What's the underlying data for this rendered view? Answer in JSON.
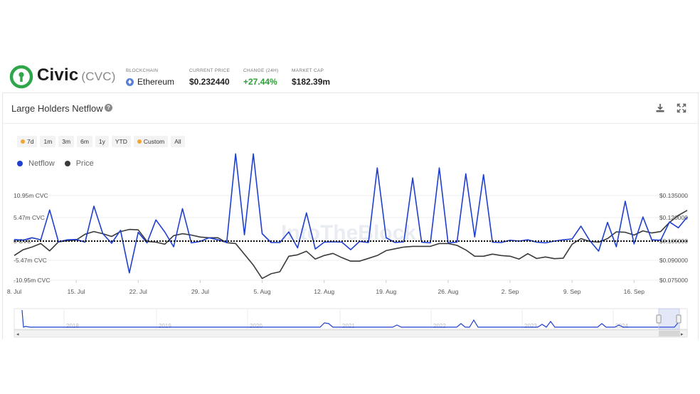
{
  "header": {
    "name": "Civic",
    "ticker": "(CVC)",
    "stats": [
      {
        "label": "BLOCKCHAIN",
        "value": "Ethereum"
      },
      {
        "label": "CURRENT PRICE",
        "value": "$0.232440"
      },
      {
        "label": "CHANGE (24H)",
        "value": "+27.44%"
      },
      {
        "label": "MARKET CAP",
        "value": "$182.39m"
      }
    ]
  },
  "card": {
    "title": "Large Holders Netflow",
    "help_icon": "?",
    "download_icon": "download-icon",
    "fullscreen_icon": "fullscreen-icon"
  },
  "ranges": [
    "7d",
    "1m",
    "3m",
    "6m",
    "1y",
    "YTD",
    "Custom",
    "All"
  ],
  "colors": {
    "netflow": "#1f3fcf",
    "price": "#3a3a3a",
    "positive": "#2f9e3a",
    "brand": "#2fa64a"
  },
  "chart_data": {
    "type": "line",
    "x_ticks": [
      "8. Jul",
      "15. Jul",
      "22. Jul",
      "29. Jul",
      "5. Aug",
      "12. Aug",
      "19. Aug",
      "26. Aug",
      "2. Sep",
      "9. Sep",
      "16. Sep"
    ],
    "left_axis": {
      "ticks": [
        "10.95m CVC",
        "5.47m CVC",
        "0 CVC",
        "-5.47m CVC",
        "-10.95m CVC"
      ],
      "range": [
        -10.95,
        10.95
      ],
      "unit": "m CVC"
    },
    "right_axis": {
      "ticks": [
        "$0.135000",
        "$0.120000",
        "$0.105000",
        "$0.090000",
        "$0.075000"
      ],
      "range": [
        0.075,
        0.135
      ]
    },
    "x_range": [
      0,
      76
    ],
    "series": [
      {
        "name": "Netflow",
        "axis": "left",
        "x": [
          0,
          1,
          2,
          3,
          4,
          5,
          6,
          7,
          8,
          9,
          10,
          11,
          12,
          13,
          14,
          15,
          16,
          17,
          18,
          19,
          20,
          21,
          22,
          23,
          24,
          25,
          26,
          27,
          28,
          29,
          30,
          31,
          32,
          33,
          34,
          35,
          36,
          37,
          38,
          39,
          40,
          41,
          42,
          43,
          44,
          45,
          46,
          47,
          48,
          49,
          50,
          51,
          52,
          53,
          54,
          55,
          56,
          57,
          58,
          59,
          60,
          61,
          62,
          63,
          64,
          65,
          66,
          67,
          68,
          69,
          70,
          71,
          72,
          73,
          74,
          75,
          76
        ],
        "values": [
          0.4,
          0.2,
          0.8,
          0.3,
          7.5,
          -0.2,
          0.3,
          0.4,
          -0.3,
          8.4,
          1.8,
          -0.6,
          2.6,
          -8.9,
          2.1,
          -0.5,
          5.1,
          2.2,
          -1.6,
          7.8,
          -0.5,
          -0.1,
          0.8,
          0.3,
          -0.4,
          21.0,
          1.5,
          21.0,
          1.8,
          -0.4,
          -0.4,
          2.2,
          -1.9,
          6.8,
          -2.2,
          -0.3,
          -0.2,
          -0.3,
          -2.4,
          -0.1,
          -0.4,
          17.6,
          0.8,
          -0.4,
          -0.2,
          15.2,
          -0.3,
          -0.5,
          17.6,
          -0.5,
          -0.3,
          16.2,
          1.0,
          16.0,
          -0.3,
          -0.4,
          0.2,
          0.0,
          0.3,
          -0.3,
          -0.5,
          0.0,
          0.3,
          0.5,
          3.6,
          0.1,
          -2.8,
          4.5,
          -1.6,
          9.6,
          -0.8,
          5.8,
          0.3,
          0.2,
          4.6,
          3.2,
          5.8
        ]
      },
      {
        "name": "Price",
        "axis": "right",
        "x": [
          0,
          1,
          2,
          3,
          4,
          5,
          6,
          7,
          8,
          9,
          10,
          11,
          12,
          13,
          14,
          15,
          16,
          17,
          18,
          19,
          20,
          21,
          22,
          23,
          24,
          25,
          26,
          27,
          28,
          29,
          30,
          31,
          32,
          33,
          34,
          35,
          36,
          37,
          38,
          39,
          40,
          41,
          42,
          43,
          44,
          45,
          46,
          47,
          48,
          49,
          50,
          51,
          52,
          53,
          54,
          55,
          56,
          57,
          58,
          59,
          60,
          61,
          62,
          63,
          64,
          65,
          66,
          67,
          68,
          69,
          70,
          71,
          72,
          73,
          74,
          75,
          76
        ],
        "values": [
          0.0925,
          0.0966,
          0.0985,
          0.101,
          0.0958,
          0.1022,
          0.103,
          0.1035,
          0.1076,
          0.1095,
          0.108,
          0.106,
          0.1095,
          0.111,
          0.1107,
          0.1025,
          0.102,
          0.1005,
          0.1066,
          0.108,
          0.107,
          0.1056,
          0.1051,
          0.1051,
          0.1016,
          0.101,
          0.0934,
          0.0857,
          0.0762,
          0.0796,
          0.081,
          0.092,
          0.093,
          0.0955,
          0.09,
          0.0925,
          0.094,
          0.091,
          0.0885,
          0.0885,
          0.0905,
          0.0925,
          0.096,
          0.0973,
          0.0985,
          0.099,
          0.099,
          0.099,
          0.101,
          0.101,
          0.0997,
          0.0965,
          0.092,
          0.092,
          0.0935,
          0.0925,
          0.092,
          0.09,
          0.0938,
          0.0904,
          0.0915,
          0.0903,
          0.0906,
          0.1005,
          0.1045,
          0.1025,
          0.102,
          0.1045,
          0.1093,
          0.109,
          0.107,
          0.11,
          0.1085,
          0.1095,
          0.116,
          0.121,
          0.1245
        ]
      }
    ],
    "zero_line": "dotted",
    "watermark": "IntoTheBlock",
    "navigator": {
      "years": [
        "2018",
        "2019",
        "2020",
        "2021",
        "2022",
        "2023",
        "2024"
      ]
    }
  }
}
